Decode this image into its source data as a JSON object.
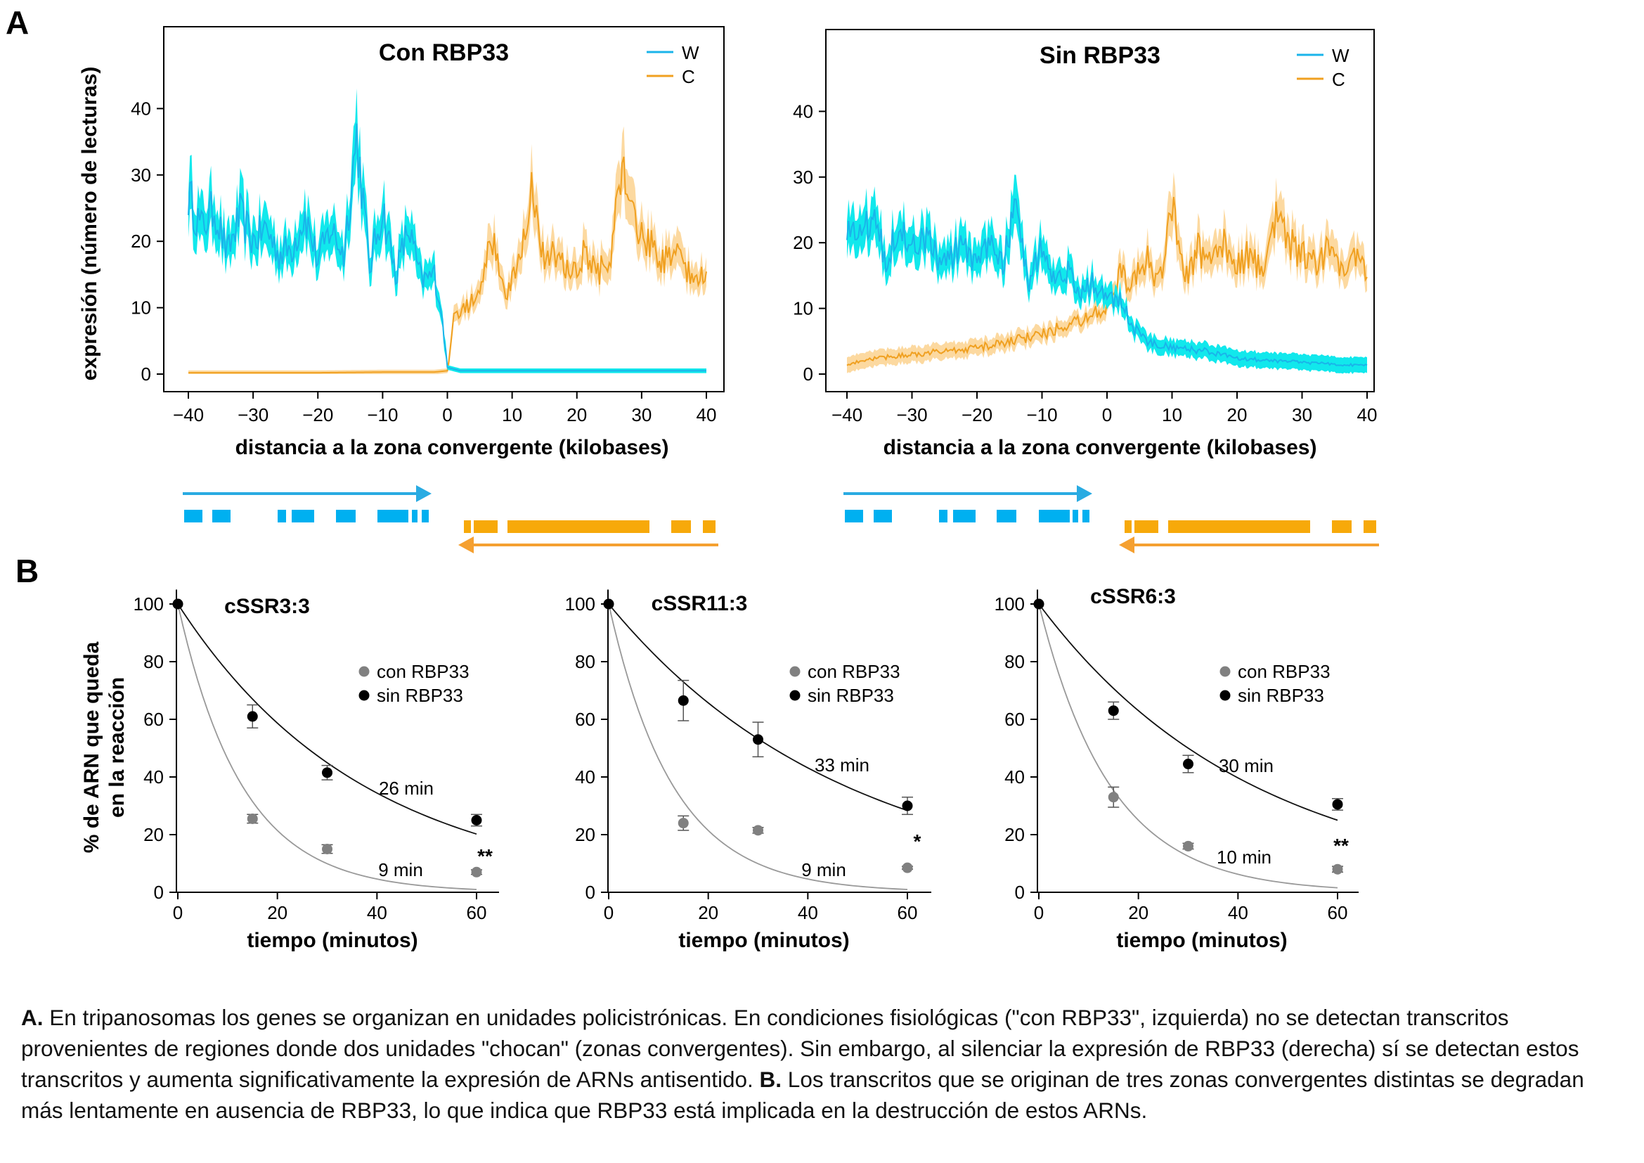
{
  "panel_labels": [
    "A",
    "B"
  ],
  "legend_labels": {
    "w": "W",
    "c": "C",
    "con": "con RBP33",
    "sin": "sin RBP33"
  },
  "colors": {
    "w": "#11e8ec",
    "w_line": "#1ab4ea",
    "c": "#f0a020",
    "c_band": "#fcd9a0",
    "arrow_blue": "#29abe2",
    "arrow_orange": "#f5a030",
    "bar_orange": "#f7a90a",
    "con_dot": "#808080",
    "sin_dot": "#000000",
    "fit_con": "#999999",
    "fit_sin": "#111111"
  },
  "axis_titles": {
    "a_y": "expresión (número de lecturas)",
    "a_x": "distancia a la zona convergente (kilobases)",
    "b_y1": "% de ARN que queda",
    "b_y2": "en la reacción",
    "b_x": "tiempo (minutos)"
  },
  "chart_data": [
    {
      "type": "area",
      "title": "Con RBP33",
      "xlabel": "distancia a la zona convergente (kilobases)",
      "ylabel": "expresión (número de lecturas)",
      "xlim": [
        -40,
        40
      ],
      "ylim": [
        0,
        50
      ],
      "xticks": [
        -40,
        -30,
        -20,
        -10,
        0,
        10,
        20,
        30,
        40
      ],
      "yticks": [
        0,
        10,
        20,
        30,
        40
      ],
      "legend": "top-right",
      "series": [
        {
          "name": "W",
          "x": [
            -40,
            -38,
            -36,
            -34,
            -32,
            -30,
            -28,
            -26,
            -24,
            -22,
            -20,
            -18,
            -16,
            -14,
            -12,
            -10,
            -8,
            -6,
            -4,
            -2,
            -1,
            0,
            2,
            5,
            10,
            15,
            20,
            25,
            30,
            35,
            40
          ],
          "values": [
            27,
            22,
            25,
            18,
            24,
            20,
            22,
            18,
            19,
            24,
            17,
            22,
            18,
            36,
            16,
            25,
            15,
            22,
            14,
            15,
            10,
            1,
            0.5,
            0.5,
            0.5,
            0.5,
            0.5,
            0.5,
            0.5,
            0.5,
            0.5
          ]
        },
        {
          "name": "C",
          "x": [
            -40,
            -30,
            -20,
            -10,
            -2,
            0,
            1,
            3,
            5,
            7,
            9,
            11,
            13,
            15,
            17,
            19,
            21,
            23,
            25,
            27,
            29,
            31,
            33,
            35,
            37,
            39,
            40
          ],
          "values": [
            0.2,
            0.2,
            0.2,
            0.3,
            0.3,
            0.5,
            8,
            10,
            14,
            20,
            12,
            16,
            28,
            16,
            19,
            14,
            18,
            15,
            17,
            32,
            22,
            20,
            17,
            18,
            16,
            14,
            16
          ]
        }
      ]
    },
    {
      "type": "area",
      "title": "Sin RBP33",
      "xlabel": "distancia a la zona convergente (kilobases)",
      "ylabel": "",
      "xlim": [
        -40,
        40
      ],
      "ylim": [
        0,
        50
      ],
      "xticks": [
        -40,
        -30,
        -20,
        -10,
        0,
        10,
        20,
        30,
        40
      ],
      "yticks": [
        0,
        10,
        20,
        30,
        40
      ],
      "legend": "top-right",
      "series": [
        {
          "name": "W",
          "x": [
            -40,
            -38,
            -36,
            -34,
            -32,
            -30,
            -28,
            -26,
            -24,
            -22,
            -20,
            -18,
            -16,
            -14,
            -12,
            -10,
            -8,
            -6,
            -4,
            -2,
            0,
            2,
            4,
            6,
            10,
            15,
            20,
            25,
            30,
            35,
            40
          ],
          "values": [
            23,
            21,
            24,
            18,
            22,
            19,
            21,
            17,
            18,
            20,
            16,
            21,
            17,
            26,
            14,
            20,
            13,
            16,
            12,
            14,
            11,
            12,
            7,
            5,
            4,
            3.5,
            2.5,
            2,
            1.8,
            1.5,
            1.3
          ]
        },
        {
          "name": "C",
          "x": [
            -40,
            -35,
            -30,
            -25,
            -20,
            -15,
            -10,
            -5,
            -2,
            0,
            2,
            4,
            6,
            8,
            10,
            12,
            14,
            16,
            18,
            20,
            22,
            24,
            26,
            28,
            30,
            32,
            34,
            36,
            38,
            40
          ],
          "values": [
            1.5,
            2.5,
            3,
            3.5,
            4,
            5,
            6,
            8,
            9,
            10,
            15,
            14,
            18,
            14,
            25,
            15,
            19,
            16,
            20,
            17,
            18,
            15,
            25,
            20,
            18,
            17,
            19,
            15,
            17,
            16
          ]
        }
      ]
    },
    {
      "type": "scatter",
      "title": "cSSR3:3",
      "xlabel": "tiempo (minutos)",
      "ylabel": "% de ARN que queda en la reacción",
      "xlim": [
        0,
        65
      ],
      "ylim": [
        0,
        105
      ],
      "xticks": [
        0,
        20,
        40,
        60
      ],
      "yticks": [
        0,
        20,
        40,
        60,
        80,
        100
      ],
      "legend": "top-right",
      "x": [
        0,
        15,
        30,
        60
      ],
      "series": [
        {
          "name": "con RBP33",
          "values": [
            100,
            25.5,
            15,
            7
          ],
          "err": [
            0,
            1.5,
            1.5,
            0.8
          ],
          "half_life": "9 min"
        },
        {
          "name": "sin RBP33",
          "values": [
            100,
            61,
            41.5,
            25
          ],
          "err": [
            0,
            4,
            2.5,
            2
          ],
          "half_life": "26 min"
        }
      ],
      "significance": "**"
    },
    {
      "type": "scatter",
      "title": "cSSR11:3",
      "xlabel": "tiempo (minutos)",
      "ylabel": "",
      "xlim": [
        0,
        65
      ],
      "ylim": [
        0,
        105
      ],
      "xticks": [
        0,
        20,
        40,
        60
      ],
      "yticks": [
        0,
        20,
        40,
        60,
        80,
        100
      ],
      "legend": "top-right",
      "x": [
        0,
        15,
        30,
        60
      ],
      "series": [
        {
          "name": "con RBP33",
          "values": [
            100,
            24,
            21.5,
            8.5
          ],
          "err": [
            0,
            2.5,
            1,
            0.5
          ],
          "half_life": "9 min"
        },
        {
          "name": "sin RBP33",
          "values": [
            100,
            66.5,
            53,
            30
          ],
          "err": [
            0,
            7,
            6,
            3
          ],
          "half_life": "33 min"
        }
      ],
      "significance": "*"
    },
    {
      "type": "scatter",
      "title": "cSSR6:3",
      "xlabel": "tiempo (minutos)",
      "ylabel": "",
      "xlim": [
        0,
        65
      ],
      "ylim": [
        0,
        105
      ],
      "xticks": [
        0,
        20,
        40,
        60
      ],
      "yticks": [
        0,
        20,
        40,
        60,
        80,
        100
      ],
      "legend": "top-right",
      "x": [
        0,
        15,
        30,
        60
      ],
      "series": [
        {
          "name": "con RBP33",
          "values": [
            100,
            33,
            16,
            8
          ],
          "err": [
            0,
            3.5,
            1,
            1
          ],
          "half_life": "10 min"
        },
        {
          "name": "sin RBP33",
          "values": [
            100,
            63,
            44.5,
            30.5
          ],
          "err": [
            0,
            3,
            3,
            2
          ],
          "half_life": "30 min"
        }
      ],
      "significance": "**"
    }
  ],
  "caption": {
    "a_label": "A.",
    "a_text": " En tripanosomas los genes se organizan en unidades policistrónicas. En condiciones fisiológicas (\"con RBP33\", izquierda) no se detectan transcritos provenientes de regiones donde dos unidades \"chocan\" (zonas convergentes). Sin embargo, al silenciar la expresión de RBP33 (derecha) sí se detectan estos transcritos y aumenta significativamente la expresión de ARNs antisentido.",
    "b_label": "B.",
    "b_text": " Los transcritos que se originan de tres zonas convergentes distintas se degradan más lentamente en ausencia de RBP33, lo que indica que RBP33 está implicada en la destrucción de estos ARNs."
  }
}
